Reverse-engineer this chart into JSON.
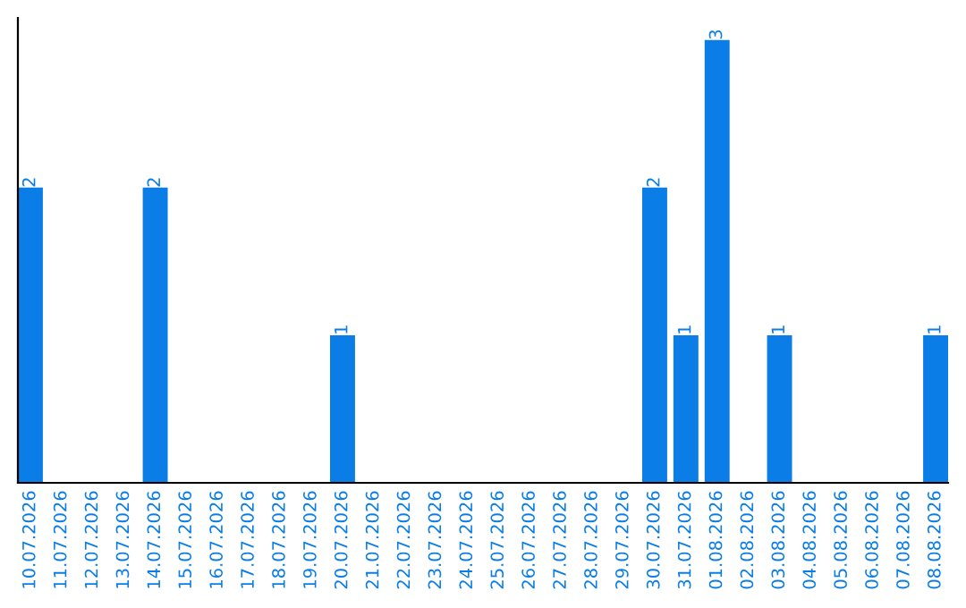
{
  "chart_data": {
    "type": "bar",
    "categories": [
      "10.07.2026",
      "11.07.2026",
      "12.07.2026",
      "13.07.2026",
      "14.07.2026",
      "15.07.2026",
      "16.07.2026",
      "17.07.2026",
      "18.07.2026",
      "19.07.2026",
      "20.07.2026",
      "21.07.2026",
      "22.07.2026",
      "23.07.2026",
      "24.07.2026",
      "25.07.2026",
      "26.07.2026",
      "27.07.2026",
      "28.07.2026",
      "29.07.2026",
      "30.07.2026",
      "31.07.2026",
      "01.08.2026",
      "02.08.2026",
      "03.08.2026",
      "04.08.2026",
      "05.08.2026",
      "06.08.2026",
      "07.08.2026",
      "08.08.2026"
    ],
    "values": [
      2,
      0,
      0,
      0,
      2,
      0,
      0,
      0,
      0,
      0,
      1,
      0,
      0,
      0,
      0,
      0,
      0,
      0,
      0,
      0,
      2,
      1,
      3,
      0,
      1,
      0,
      0,
      0,
      0,
      1
    ],
    "value_labels": [
      "2",
      null,
      null,
      null,
      "2",
      null,
      null,
      null,
      null,
      null,
      "1",
      null,
      null,
      null,
      null,
      null,
      null,
      null,
      null,
      null,
      "2",
      "1",
      "3",
      null,
      "1",
      null,
      null,
      null,
      null,
      "1"
    ],
    "color": "#0a7de6",
    "tick_labels": "x",
    "grid": false,
    "legend": false
  }
}
